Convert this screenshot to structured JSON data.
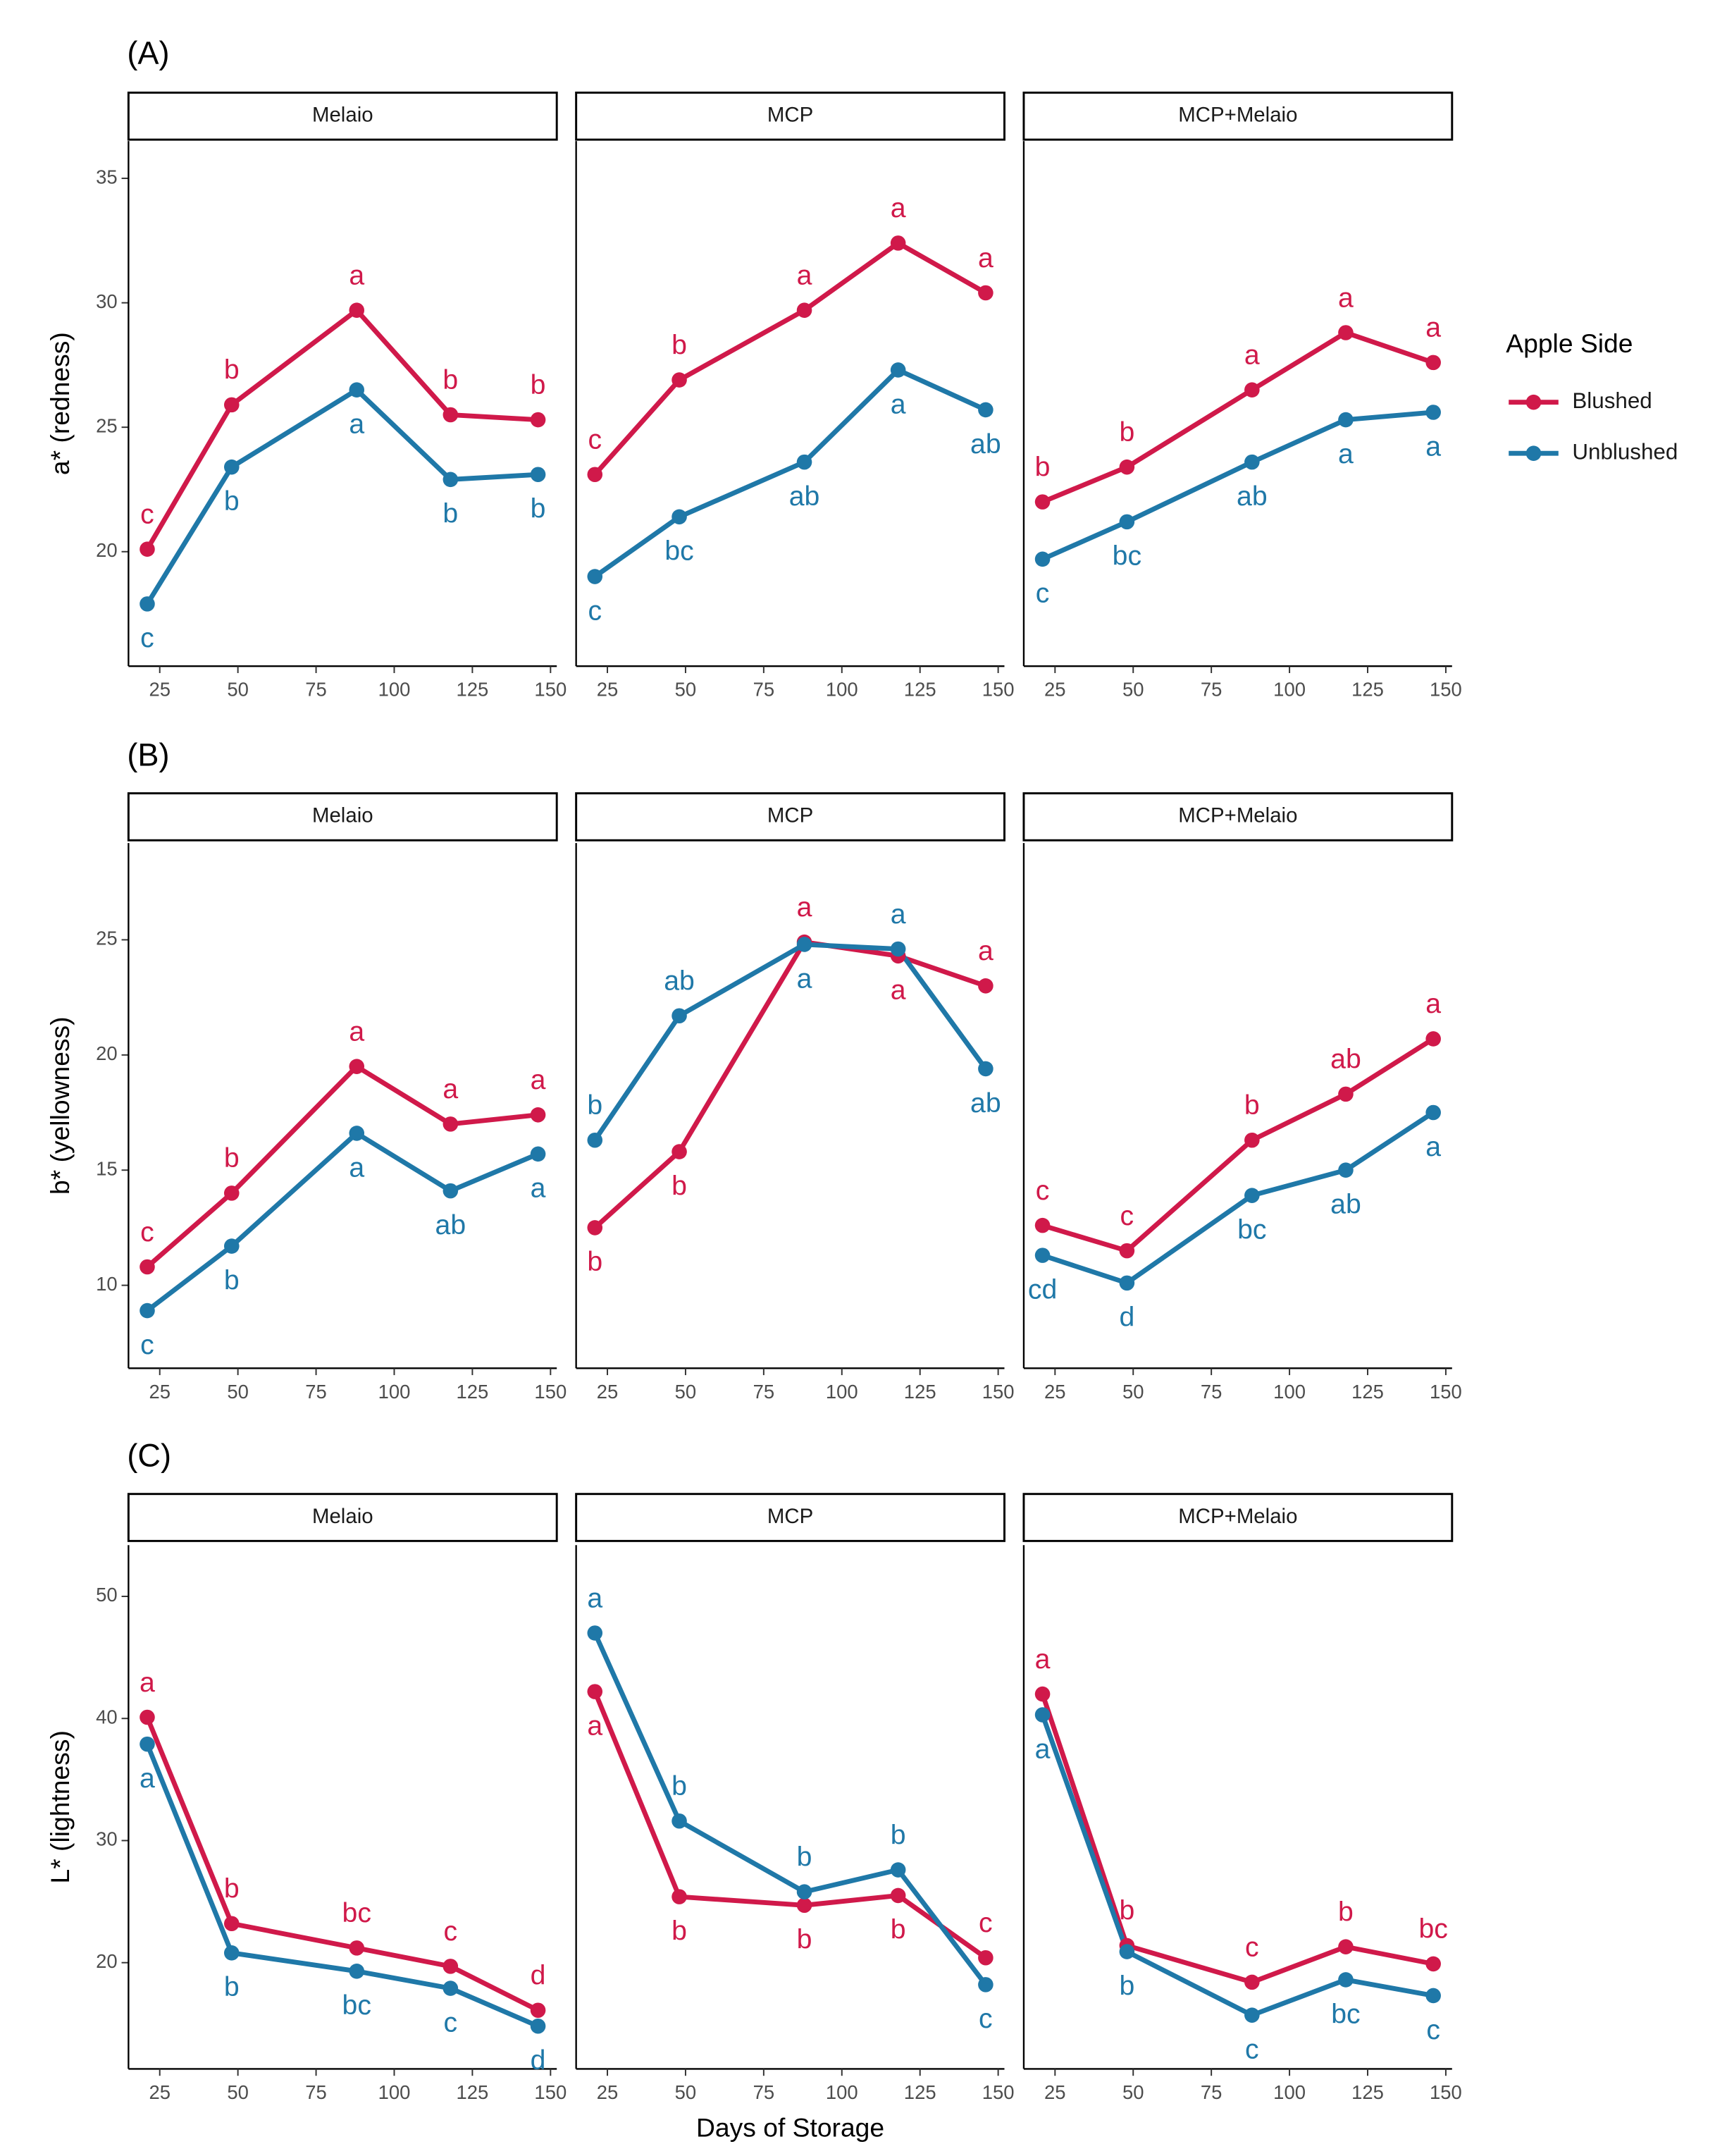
{
  "legend": {
    "title": "Apple Side"
  },
  "chart_data": [
    {
      "type": "line",
      "panel_label": "(A)",
      "y_label": "a* (redness)",
      "x": [
        21,
        48,
        88,
        118,
        146
      ],
      "xlim": [
        15,
        152
      ],
      "xticks": [
        25,
        50,
        75,
        100,
        125,
        150
      ],
      "ylim": [
        15.4,
        36.5
      ],
      "yticks": [
        20,
        25,
        30,
        35
      ],
      "facets": [
        {
          "title": "Melaio",
          "series": [
            {
              "name": "Blushed",
              "color": "#d0194a",
              "values": [
                20.1,
                25.9,
                29.7,
                25.5,
                25.3
              ],
              "letters": [
                "c",
                "b",
                "a",
                "b",
                "b"
              ]
            },
            {
              "name": "Unblushed",
              "color": "#1f78a8",
              "values": [
                17.9,
                23.4,
                26.5,
                22.9,
                23.1
              ],
              "letters": [
                "c",
                "b",
                "a",
                "b",
                "b"
              ]
            }
          ]
        },
        {
          "title": "MCP",
          "series": [
            {
              "name": "Blushed",
              "color": "#d0194a",
              "values": [
                23.1,
                26.9,
                29.7,
                32.4,
                30.4
              ],
              "letters": [
                "c",
                "b",
                "a",
                "a",
                "a"
              ]
            },
            {
              "name": "Unblushed",
              "color": "#1f78a8",
              "values": [
                19.0,
                21.4,
                23.6,
                27.3,
                25.7
              ],
              "letters": [
                "c",
                "bc",
                "ab",
                "a",
                "ab"
              ]
            }
          ]
        },
        {
          "title": "MCP+Melaio",
          "series": [
            {
              "name": "Blushed",
              "color": "#d0194a",
              "values": [
                22.0,
                23.4,
                26.5,
                28.8,
                27.6
              ],
              "letters": [
                "b",
                "b",
                "a",
                "a",
                "a"
              ]
            },
            {
              "name": "Unblushed",
              "color": "#1f78a8",
              "values": [
                19.7,
                21.2,
                23.6,
                25.3,
                25.6
              ],
              "letters": [
                "c",
                "bc",
                "ab",
                "a",
                "a"
              ]
            }
          ]
        }
      ]
    },
    {
      "type": "line",
      "panel_label": "(B)",
      "y_label": "b* (yellowness)",
      "x": [
        21,
        48,
        88,
        118,
        146
      ],
      "xlim": [
        15,
        152
      ],
      "xticks": [
        25,
        50,
        75,
        100,
        125,
        150
      ],
      "ylim": [
        6.4,
        29.2
      ],
      "yticks": [
        10,
        15,
        20,
        25
      ],
      "facets": [
        {
          "title": "Melaio",
          "series": [
            {
              "name": "Blushed",
              "color": "#d0194a",
              "values": [
                10.8,
                14.0,
                19.5,
                17.0,
                17.4
              ],
              "letters": [
                "c",
                "b",
                "a",
                "a",
                "a"
              ]
            },
            {
              "name": "Unblushed",
              "color": "#1f78a8",
              "values": [
                8.9,
                11.7,
                16.6,
                14.1,
                15.7
              ],
              "letters": [
                "c",
                "b",
                "a",
                "ab",
                "a"
              ]
            }
          ]
        },
        {
          "title": "MCP",
          "series": [
            {
              "name": "Blushed",
              "color": "#d0194a",
              "values": [
                12.5,
                15.8,
                24.9,
                24.3,
                23.0
              ],
              "letters": [
                "b",
                "b",
                "a",
                "a",
                "a"
              ]
            },
            {
              "name": "Unblushed",
              "color": "#1f78a8",
              "values": [
                16.3,
                21.7,
                24.8,
                24.6,
                19.4
              ],
              "letters": [
                "b",
                "ab",
                "a",
                "a",
                "ab"
              ]
            }
          ]
        },
        {
          "title": "MCP+Melaio",
          "series": [
            {
              "name": "Blushed",
              "color": "#d0194a",
              "values": [
                12.6,
                11.5,
                16.3,
                18.3,
                20.7
              ],
              "letters": [
                "c",
                "c",
                "b",
                "ab",
                "a"
              ]
            },
            {
              "name": "Unblushed",
              "color": "#1f78a8",
              "values": [
                11.3,
                10.1,
                13.9,
                15.0,
                17.5
              ],
              "letters": [
                "cd",
                "d",
                "bc",
                "ab",
                "a"
              ]
            }
          ]
        }
      ]
    },
    {
      "type": "line",
      "panel_label": "(C)",
      "y_label": "L* (lightness)",
      "x_label": "Days of Storage",
      "x": [
        21,
        48,
        88,
        118,
        146
      ],
      "xlim": [
        15,
        152
      ],
      "xticks": [
        25,
        50,
        75,
        100,
        125,
        150
      ],
      "ylim": [
        11.3,
        54.2
      ],
      "yticks": [
        20,
        30,
        40,
        50
      ],
      "facets": [
        {
          "title": "Melaio",
          "series": [
            {
              "name": "Blushed",
              "color": "#d0194a",
              "values": [
                40.1,
                23.2,
                21.2,
                19.7,
                16.1
              ],
              "letters": [
                "a",
                "b",
                "bc",
                "c",
                "d"
              ]
            },
            {
              "name": "Unblushed",
              "color": "#1f78a8",
              "values": [
                37.9,
                20.8,
                19.3,
                17.9,
                14.8
              ],
              "letters": [
                "a",
                "b",
                "bc",
                "c",
                "d"
              ]
            }
          ]
        },
        {
          "title": "MCP",
          "series": [
            {
              "name": "Blushed",
              "color": "#d0194a",
              "values": [
                42.2,
                25.4,
                24.7,
                25.5,
                20.4
              ],
              "letters": [
                "a",
                "b",
                "b",
                "b",
                "c"
              ]
            },
            {
              "name": "Unblushed",
              "color": "#1f78a8",
              "values": [
                47.0,
                31.6,
                25.8,
                27.6,
                18.2
              ],
              "letters": [
                "a",
                "b",
                "b",
                "b",
                "c"
              ]
            }
          ]
        },
        {
          "title": "MCP+Melaio",
          "series": [
            {
              "name": "Blushed",
              "color": "#d0194a",
              "values": [
                42.0,
                21.4,
                18.4,
                21.3,
                19.9
              ],
              "letters": [
                "a",
                "b",
                "c",
                "b",
                "bc"
              ]
            },
            {
              "name": "Unblushed",
              "color": "#1f78a8",
              "values": [
                40.3,
                20.9,
                15.7,
                18.6,
                17.3
              ],
              "letters": [
                "a",
                "b",
                "c",
                "bc",
                "c"
              ]
            }
          ]
        }
      ]
    }
  ]
}
